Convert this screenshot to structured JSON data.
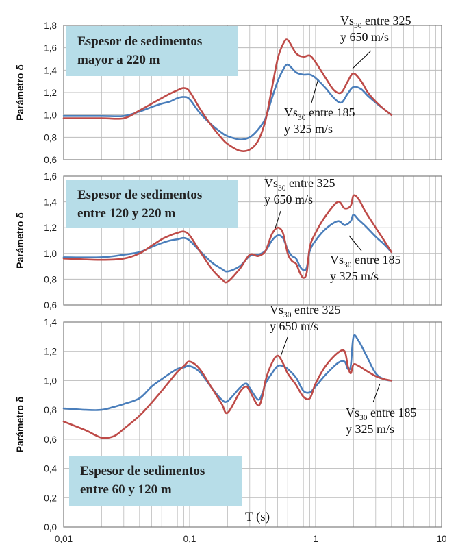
{
  "colors": {
    "series_blue": "#4a7ebb",
    "series_red": "#be4b48",
    "grid": "#bcbcbc",
    "box_fill": "#b7dde8",
    "frame": "#7f7f7f"
  },
  "chart_data": [
    {
      "type": "line",
      "ylabel": "Parámetro δ",
      "xscale": "log",
      "xlim": [
        0.01,
        10
      ],
      "ylim": [
        0.6,
        1.8
      ],
      "yticks": [
        "0,6",
        "0,8",
        "1,0",
        "1,2",
        "1,4",
        "1,6",
        "1,8"
      ],
      "box_lines": [
        "Espesor de sedimentos",
        "mayor a 220 m"
      ],
      "annotations": [
        {
          "pre": "Vs",
          "sub": "30",
          "post": " entre 325",
          "line2": "y 650 m/s",
          "series": "red"
        },
        {
          "pre": "Vs",
          "sub": "30",
          "post": " entre 185",
          "line2": "y 325 m/s",
          "series": "blue"
        }
      ],
      "series": [
        {
          "name": "Vs30 entre 185 y 325 m/s",
          "color": "blue",
          "x": [
            0.01,
            0.02,
            0.03,
            0.04,
            0.05,
            0.06,
            0.07,
            0.08,
            0.09,
            0.1,
            0.12,
            0.15,
            0.18,
            0.2,
            0.25,
            0.3,
            0.35,
            0.4,
            0.45,
            0.5,
            0.55,
            0.6,
            0.7,
            0.8,
            0.9,
            1.0,
            1.2,
            1.4,
            1.6,
            1.8,
            2.0,
            2.3,
            2.6,
            3.0,
            3.5,
            4.0
          ],
          "y": [
            0.99,
            0.99,
            0.99,
            1.03,
            1.07,
            1.1,
            1.12,
            1.15,
            1.16,
            1.14,
            1.02,
            0.91,
            0.84,
            0.81,
            0.78,
            0.8,
            0.87,
            0.97,
            1.15,
            1.3,
            1.4,
            1.45,
            1.38,
            1.36,
            1.36,
            1.33,
            1.24,
            1.15,
            1.11,
            1.19,
            1.25,
            1.23,
            1.17,
            1.11,
            1.05,
            1.0
          ]
        },
        {
          "name": "Vs30 entre 325 y 650 m/s",
          "color": "red",
          "x": [
            0.01,
            0.02,
            0.03,
            0.04,
            0.05,
            0.06,
            0.07,
            0.08,
            0.09,
            0.1,
            0.12,
            0.15,
            0.18,
            0.2,
            0.25,
            0.3,
            0.35,
            0.4,
            0.45,
            0.5,
            0.55,
            0.6,
            0.7,
            0.8,
            0.9,
            1.0,
            1.2,
            1.4,
            1.6,
            1.8,
            2.0,
            2.3,
            2.6,
            3.0,
            3.5,
            4.0
          ],
          "y": [
            0.97,
            0.97,
            0.97,
            1.04,
            1.1,
            1.15,
            1.19,
            1.22,
            1.24,
            1.21,
            1.06,
            0.9,
            0.79,
            0.74,
            0.68,
            0.69,
            0.77,
            0.95,
            1.24,
            1.5,
            1.63,
            1.67,
            1.55,
            1.52,
            1.53,
            1.47,
            1.33,
            1.22,
            1.2,
            1.3,
            1.37,
            1.3,
            1.2,
            1.12,
            1.05,
            1.0
          ]
        }
      ]
    },
    {
      "type": "line",
      "ylabel": "Parámetro δ",
      "xscale": "log",
      "xlim": [
        0.01,
        10
      ],
      "ylim": [
        0.6,
        1.6
      ],
      "yticks": [
        "0,6",
        "0,8",
        "1,0",
        "1,2",
        "1,4",
        "1,6"
      ],
      "box_lines": [
        "Espesor de sedimentos",
        "entre 120 y 220 m"
      ],
      "annotations": [
        {
          "pre": "Vs",
          "sub": "30",
          "post": " entre 325",
          "line2": "y 650 m/s",
          "series": "red"
        },
        {
          "pre": "Vs",
          "sub": "30",
          "post": " entre 185",
          "line2": "y 325 m/s",
          "series": "blue"
        }
      ],
      "series": [
        {
          "name": "Vs30 entre 185 y 325 m/s",
          "color": "blue",
          "x": [
            0.01,
            0.02,
            0.03,
            0.04,
            0.05,
            0.06,
            0.07,
            0.08,
            0.09,
            0.1,
            0.12,
            0.15,
            0.18,
            0.2,
            0.25,
            0.3,
            0.35,
            0.4,
            0.45,
            0.5,
            0.55,
            0.6,
            0.65,
            0.7,
            0.75,
            0.8,
            0.85,
            0.9,
            1.0,
            1.2,
            1.5,
            1.7,
            1.9,
            2.0,
            2.2,
            2.5,
            3.0,
            3.5,
            4.0
          ],
          "y": [
            0.97,
            0.97,
            0.99,
            1.01,
            1.05,
            1.08,
            1.1,
            1.11,
            1.12,
            1.1,
            1.02,
            0.93,
            0.88,
            0.86,
            0.9,
            0.98,
            0.99,
            1.02,
            1.1,
            1.14,
            1.12,
            1.03,
            0.98,
            0.96,
            0.9,
            0.87,
            0.89,
            1.02,
            1.1,
            1.19,
            1.25,
            1.22,
            1.25,
            1.3,
            1.26,
            1.21,
            1.13,
            1.07,
            1.01
          ]
        },
        {
          "name": "Vs30 entre 325 y 650 m/s",
          "color": "red",
          "x": [
            0.01,
            0.02,
            0.03,
            0.04,
            0.05,
            0.06,
            0.07,
            0.08,
            0.09,
            0.1,
            0.12,
            0.15,
            0.18,
            0.2,
            0.25,
            0.3,
            0.35,
            0.4,
            0.45,
            0.5,
            0.55,
            0.6,
            0.65,
            0.7,
            0.75,
            0.8,
            0.85,
            0.9,
            1.0,
            1.2,
            1.5,
            1.7,
            1.9,
            2.0,
            2.2,
            2.5,
            3.0,
            3.5,
            4.0
          ],
          "y": [
            0.96,
            0.95,
            0.96,
            1.0,
            1.06,
            1.11,
            1.14,
            1.16,
            1.17,
            1.14,
            1.02,
            0.88,
            0.8,
            0.78,
            0.88,
            0.99,
            0.98,
            1.02,
            1.15,
            1.2,
            1.16,
            1.0,
            0.94,
            0.92,
            0.85,
            0.81,
            0.85,
            1.05,
            1.16,
            1.29,
            1.4,
            1.35,
            1.37,
            1.45,
            1.42,
            1.32,
            1.2,
            1.1,
            1.01
          ]
        }
      ]
    },
    {
      "type": "line",
      "ylabel": "Parámetro δ",
      "xlabel": "T (s)",
      "xscale": "log",
      "xlim": [
        0.01,
        10
      ],
      "ylim": [
        0.0,
        1.4
      ],
      "xticks": [
        "0,01",
        "0,1",
        "1",
        "10"
      ],
      "yticks": [
        "0,0",
        "0,2",
        "0,4",
        "0,6",
        "0,8",
        "1,0",
        "1,2",
        "1,4"
      ],
      "box_lines": [
        "Espesor de sedimentos",
        "entre 60 y 120 m"
      ],
      "annotations": [
        {
          "pre": "Vs",
          "sub": "30",
          "post": " entre 325",
          "line2": "y 650 m/s",
          "series": "red"
        },
        {
          "pre": "Vs",
          "sub": "30",
          "post": " entre 185",
          "line2": "y 325 m/s",
          "series": "blue"
        }
      ],
      "series": [
        {
          "name": "Vs30 entre 185 y 325 m/s",
          "color": "blue",
          "x": [
            0.01,
            0.015,
            0.02,
            0.025,
            0.03,
            0.04,
            0.05,
            0.06,
            0.07,
            0.08,
            0.09,
            0.1,
            0.12,
            0.15,
            0.18,
            0.2,
            0.25,
            0.28,
            0.3,
            0.35,
            0.38,
            0.4,
            0.45,
            0.5,
            0.55,
            0.6,
            0.7,
            0.8,
            0.9,
            1.0,
            1.2,
            1.5,
            1.7,
            1.8,
            1.9,
            2.0,
            2.2,
            2.5,
            3.0,
            3.5,
            4.0
          ],
          "y": [
            0.81,
            0.8,
            0.8,
            0.82,
            0.84,
            0.88,
            0.96,
            1.01,
            1.05,
            1.08,
            1.09,
            1.1,
            1.06,
            0.95,
            0.87,
            0.86,
            0.95,
            0.98,
            0.95,
            0.87,
            0.92,
            0.98,
            1.05,
            1.1,
            1.1,
            1.08,
            1.02,
            0.93,
            0.92,
            0.96,
            1.04,
            1.12,
            1.13,
            1.08,
            1.1,
            1.3,
            1.27,
            1.18,
            1.05,
            1.01,
            1.0
          ]
        },
        {
          "name": "Vs30 entre 325 y 650 m/s",
          "color": "red",
          "x": [
            0.01,
            0.015,
            0.02,
            0.025,
            0.03,
            0.04,
            0.05,
            0.06,
            0.07,
            0.08,
            0.09,
            0.1,
            0.12,
            0.15,
            0.18,
            0.2,
            0.25,
            0.28,
            0.3,
            0.35,
            0.38,
            0.4,
            0.45,
            0.5,
            0.55,
            0.6,
            0.7,
            0.8,
            0.9,
            1.0,
            1.2,
            1.5,
            1.7,
            1.8,
            1.9,
            2.0,
            2.2,
            2.5,
            3.0,
            3.5,
            4.0
          ],
          "y": [
            0.72,
            0.66,
            0.61,
            0.62,
            0.67,
            0.76,
            0.85,
            0.93,
            1.0,
            1.06,
            1.1,
            1.13,
            1.08,
            0.95,
            0.84,
            0.78,
            0.92,
            0.96,
            0.93,
            0.83,
            0.9,
            1.0,
            1.12,
            1.17,
            1.12,
            1.05,
            0.97,
            0.89,
            0.88,
            0.98,
            1.1,
            1.19,
            1.2,
            1.1,
            1.05,
            1.11,
            1.1,
            1.07,
            1.03,
            1.01,
            1.0
          ]
        }
      ]
    }
  ]
}
